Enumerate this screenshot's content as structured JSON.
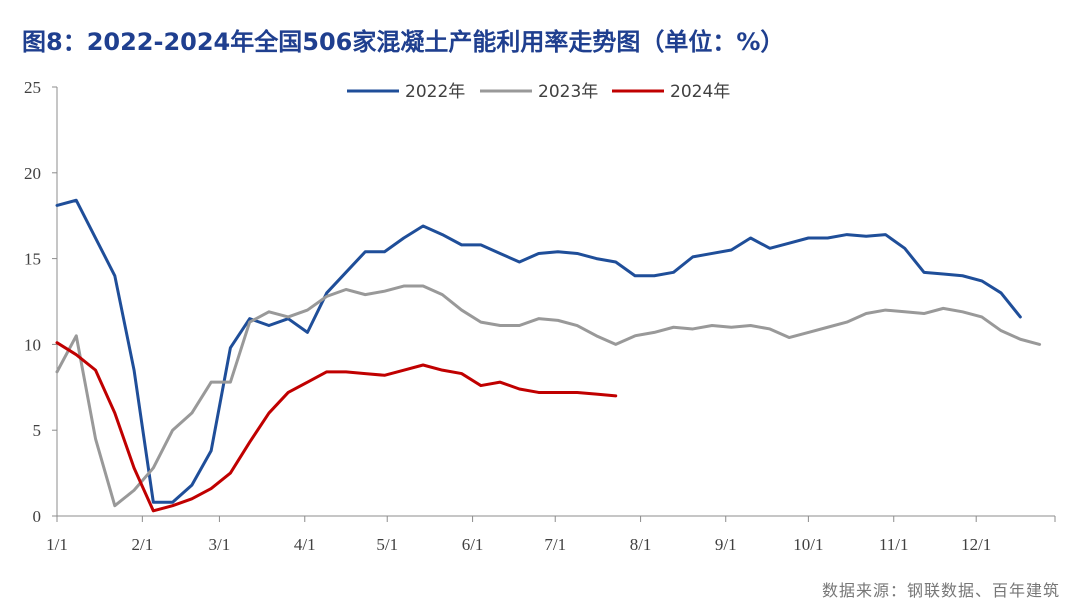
{
  "title": "图8：2022-2024年全国506家混凝土产能利用率走势图（单位：%）",
  "source": "数据来源：钢联数据、百年建筑",
  "chart_data": {
    "type": "line",
    "title": "图8：2022-2024年全国506家混凝土产能利用率走势图（单位：%）",
    "ylim": [
      0,
      25
    ],
    "yticks": [
      0,
      5,
      10,
      15,
      20,
      25
    ],
    "xlim": [
      0,
      51.8
    ],
    "x_ticks": [
      {
        "label": "1/1",
        "x": 0
      },
      {
        "label": "2/1",
        "x": 4.43
      },
      {
        "label": "3/1",
        "x": 8.43
      },
      {
        "label": "4/1",
        "x": 12.86
      },
      {
        "label": "5/1",
        "x": 17.14
      },
      {
        "label": "6/1",
        "x": 21.57
      },
      {
        "label": "7/1",
        "x": 25.86
      },
      {
        "label": "8/1",
        "x": 30.29
      },
      {
        "label": "9/1",
        "x": 34.71
      },
      {
        "label": "10/1",
        "x": 39.0
      },
      {
        "label": "11/1",
        "x": 43.43
      },
      {
        "label": "12/1",
        "x": 47.71
      }
    ],
    "legend": [
      "2022年",
      "2023年",
      "2024年"
    ],
    "series": [
      {
        "name": "2022年",
        "color": "#1f4e99",
        "values": [
          18.1,
          18.4,
          16.2,
          14.0,
          8.5,
          0.8,
          0.8,
          1.8,
          3.8,
          9.8,
          11.5,
          11.1,
          11.5,
          10.7,
          13.0,
          14.2,
          15.4,
          15.4,
          16.2,
          16.9,
          16.4,
          15.8,
          15.8,
          15.3,
          14.8,
          15.3,
          15.4,
          15.3,
          15.0,
          14.8,
          14.0,
          14.0,
          14.2,
          15.1,
          15.3,
          15.5,
          16.2,
          15.6,
          15.9,
          16.2,
          16.2,
          16.4,
          16.3,
          16.4,
          15.6,
          14.2,
          14.1,
          14.0,
          13.7,
          13.0,
          11.6
        ]
      },
      {
        "name": "2023年",
        "color": "#999999",
        "values": [
          8.4,
          10.5,
          4.5,
          0.6,
          1.5,
          2.8,
          5.0,
          6.0,
          7.8,
          7.8,
          11.3,
          11.9,
          11.6,
          12.0,
          12.8,
          13.2,
          12.9,
          13.1,
          13.4,
          13.4,
          12.9,
          12.0,
          11.3,
          11.1,
          11.1,
          11.5,
          11.4,
          11.1,
          10.5,
          10.0,
          10.5,
          10.7,
          11.0,
          10.9,
          11.1,
          11.0,
          11.1,
          10.9,
          10.4,
          10.7,
          11.0,
          11.3,
          11.8,
          12.0,
          11.9,
          11.8,
          12.1,
          11.9,
          11.6,
          10.8,
          10.3,
          10.0
        ]
      },
      {
        "name": "2024年",
        "color": "#c00000",
        "values": [
          10.1,
          9.4,
          8.5,
          6.0,
          2.8,
          0.3,
          0.6,
          1.0,
          1.6,
          2.5,
          4.3,
          6.0,
          7.2,
          7.8,
          8.4,
          8.4,
          8.3,
          8.2,
          8.5,
          8.8,
          8.5,
          8.3,
          7.6,
          7.8,
          7.4,
          7.2,
          7.2,
          7.2,
          7.1,
          7.0
        ]
      }
    ]
  }
}
